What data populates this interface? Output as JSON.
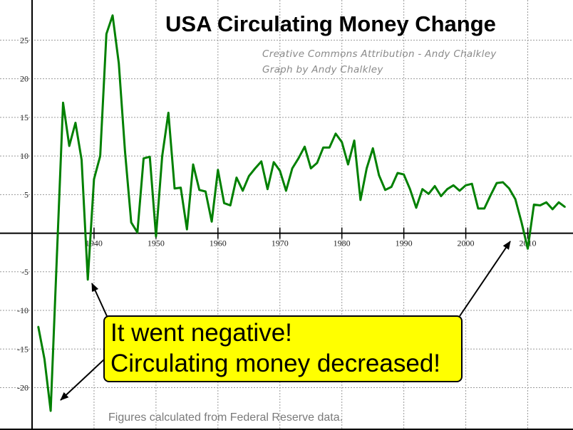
{
  "chart_data": {
    "type": "line",
    "title": "USA Circulating Money Change",
    "credits": [
      "Creative Commons Attribution - Andy Chalkley",
      "Graph by Andy Chalkley"
    ],
    "footer": "Figures calculated from Federal Reserve data.",
    "xlabel": "",
    "ylabel": "",
    "xlim": [
      1930,
      2016.5
    ],
    "ylim": [
      -25.3,
      30.2
    ],
    "x_ticks": [
      1940,
      1950,
      1960,
      1970,
      1980,
      1990,
      2000,
      2010
    ],
    "y_ticks": [
      25,
      20,
      15,
      10,
      5,
      -5,
      -10,
      -15,
      -20
    ],
    "grid": true,
    "line_color": "#008000",
    "x": [
      1931,
      1932,
      1933,
      1934,
      1935,
      1936,
      1937,
      1938,
      1939,
      1940,
      1941,
      1942,
      1943,
      1944,
      1945,
      1946,
      1947,
      1948,
      1949,
      1950,
      1951,
      1952,
      1953,
      1954,
      1955,
      1956,
      1957,
      1958,
      1959,
      1960,
      1961,
      1962,
      1963,
      1964,
      1965,
      1966,
      1967,
      1968,
      1969,
      1970,
      1971,
      1972,
      1973,
      1974,
      1975,
      1976,
      1977,
      1978,
      1979,
      1980,
      1981,
      1982,
      1983,
      1984,
      1985,
      1986,
      1987,
      1988,
      1989,
      1990,
      1991,
      1992,
      1993,
      1994,
      1995,
      1996,
      1997,
      1998,
      1999,
      2000,
      2001,
      2002,
      2003,
      2004,
      2005,
      2006,
      2007,
      2008,
      2009,
      2010,
      2011,
      2012,
      2013,
      2014,
      2015,
      2016
    ],
    "values": [
      -12.1,
      -16.3,
      -23.0,
      -3.0,
      16.9,
      11.3,
      14.3,
      9.5,
      -6.0,
      7.0,
      10.0,
      25.8,
      28.2,
      22.0,
      10.6,
      1.4,
      0.1,
      9.7,
      9.9,
      -0.4,
      10.0,
      15.6,
      5.8,
      5.9,
      0.5,
      8.9,
      5.6,
      5.4,
      1.5,
      8.2,
      3.9,
      3.6,
      7.2,
      5.5,
      7.4,
      8.4,
      9.3,
      5.7,
      9.2,
      8.1,
      5.5,
      8.4,
      9.7,
      11.2,
      8.4,
      9.1,
      11.1,
      11.1,
      12.9,
      11.8,
      8.9,
      12.0,
      4.3,
      8.4,
      11.0,
      7.5,
      5.6,
      6.0,
      7.8,
      7.6,
      5.7,
      3.3,
      5.7,
      5.1,
      6.1,
      4.8,
      5.7,
      6.2,
      5.5,
      6.2,
      6.4,
      3.2,
      3.2,
      4.9,
      6.5,
      6.6,
      5.8,
      4.4,
      1.4,
      -2.0,
      3.7,
      3.6,
      4.0,
      3.1,
      4.0,
      3.4
    ],
    "annotation": {
      "lines": [
        "It went negative!",
        "Circulating money decreased!"
      ],
      "box_color": "#ffff00",
      "points_to": [
        1933,
        1939,
        2010
      ]
    }
  }
}
